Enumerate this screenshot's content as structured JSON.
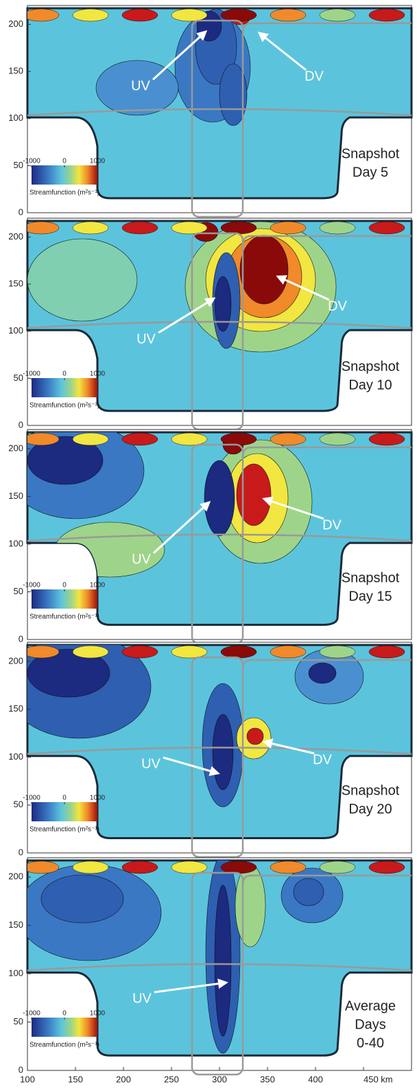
{
  "chart_data": [
    {
      "type": "contour",
      "label_lines": [
        "Snapshot",
        "Day 5"
      ],
      "annotations": [
        "UV",
        "DV"
      ],
      "xlim": [
        100,
        500
      ],
      "ylim": [
        0,
        220
      ],
      "yticks": [
        0,
        50,
        100,
        150,
        200
      ],
      "colorbar": {
        "ticks": [
          -1000,
          0,
          1000
        ],
        "label": "Streamfunction (m²s⁻¹)"
      }
    },
    {
      "type": "contour",
      "label_lines": [
        "Snapshot",
        "Day 10"
      ],
      "annotations": [
        "UV",
        "DV"
      ],
      "xlim": [
        100,
        500
      ],
      "ylim": [
        0,
        220
      ],
      "yticks": [
        0,
        50,
        100,
        150,
        200
      ],
      "colorbar": {
        "ticks": [
          -1000,
          0,
          1000
        ],
        "label": "Streamfunction (m²s⁻¹)"
      }
    },
    {
      "type": "contour",
      "label_lines": [
        "Snapshot",
        "Day 15"
      ],
      "annotations": [
        "UV",
        "DV"
      ],
      "xlim": [
        100,
        500
      ],
      "ylim": [
        0,
        220
      ],
      "yticks": [
        0,
        50,
        100,
        150,
        200
      ],
      "colorbar": {
        "ticks": [
          -1000,
          0,
          1000
        ],
        "label": "Streamfunction (m²s⁻¹)"
      }
    },
    {
      "type": "contour",
      "label_lines": [
        "Snapshot",
        "Day 20"
      ],
      "annotations": [
        "UV",
        "DV"
      ],
      "xlim": [
        100,
        500
      ],
      "ylim": [
        0,
        220
      ],
      "yticks": [
        0,
        50,
        100,
        150,
        200
      ],
      "colorbar": {
        "ticks": [
          -1000,
          0,
          1000
        ],
        "label": "Streamfunction (m²s⁻¹)"
      }
    },
    {
      "type": "contour",
      "label_lines": [
        "Average",
        "Days",
        "0-40"
      ],
      "annotations": [
        "UV"
      ],
      "xlim": [
        100,
        500
      ],
      "ylim": [
        0,
        220
      ],
      "yticks": [
        0,
        50,
        100,
        150,
        200
      ],
      "xticks": [
        100,
        150,
        200,
        250,
        300,
        350,
        400,
        {
          "value": 450,
          "label": "450 km"
        }
      ],
      "colorbar": {
        "ticks": [
          -1000,
          0,
          1000
        ],
        "label": "Streamfunction (m²s⁻¹)"
      }
    }
  ]
}
